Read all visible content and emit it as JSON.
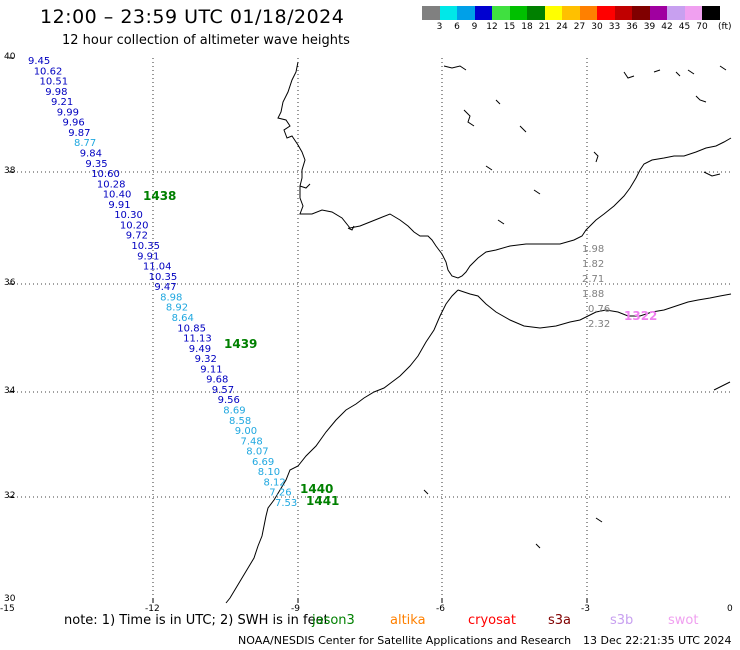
{
  "title": "12:00 – 23:59 UTC 01/18/2024",
  "subtitle": "12 hour collection of altimeter wave heights",
  "legend": {
    "unit": "(ft)",
    "bins": [
      {
        "label": "3",
        "color": "#808080"
      },
      {
        "label": "6",
        "color": "#00e8e8"
      },
      {
        "label": "9",
        "color": "#00a0e8"
      },
      {
        "label": "12",
        "color": "#0000d0"
      },
      {
        "label": "15",
        "color": "#40e040"
      },
      {
        "label": "18",
        "color": "#00c000"
      },
      {
        "label": "21",
        "color": "#008000"
      },
      {
        "label": "24",
        "color": "#ffff00"
      },
      {
        "label": "27",
        "color": "#ffc000"
      },
      {
        "label": "30",
        "color": "#ff8000"
      },
      {
        "label": "33",
        "color": "#ff0000"
      },
      {
        "label": "36",
        "color": "#c00000"
      },
      {
        "label": "39",
        "color": "#800000"
      },
      {
        "label": "42",
        "color": "#a000a0"
      },
      {
        "label": "45",
        "color": "#c8a0f0"
      },
      {
        "label": "70",
        "color": "#f0a0f0"
      },
      {
        "label": "",
        "color": "#000000"
      }
    ]
  },
  "axes": {
    "lat_ticks": [
      "40",
      "38",
      "36",
      "34",
      "32",
      "30"
    ],
    "lon_ticks": [
      "-15",
      "-12",
      "-9",
      "-6",
      "-3",
      "0"
    ]
  },
  "track_a": {
    "color_dark": "#0000c0",
    "color_light": "#20a8e0",
    "values": [
      {
        "v": "9.45",
        "c": "dark"
      },
      {
        "v": "10.62",
        "c": "dark"
      },
      {
        "v": "10.51",
        "c": "dark"
      },
      {
        "v": "9.98",
        "c": "dark"
      },
      {
        "v": "9.21",
        "c": "dark"
      },
      {
        "v": "9.99",
        "c": "dark"
      },
      {
        "v": "9.96",
        "c": "dark"
      },
      {
        "v": "9.87",
        "c": "dark"
      },
      {
        "v": "8.77",
        "c": "light"
      },
      {
        "v": "9.84",
        "c": "dark"
      },
      {
        "v": "9.35",
        "c": "dark"
      },
      {
        "v": "10.60",
        "c": "dark"
      },
      {
        "v": "10.28",
        "c": "dark"
      },
      {
        "v": "10.40",
        "c": "dark"
      },
      {
        "v": "9.91",
        "c": "dark"
      },
      {
        "v": "10.30",
        "c": "dark"
      },
      {
        "v": "10.20",
        "c": "dark"
      },
      {
        "v": "9.72",
        "c": "dark"
      },
      {
        "v": "10.35",
        "c": "dark"
      },
      {
        "v": "9.91",
        "c": "dark"
      },
      {
        "v": "11.04",
        "c": "dark"
      },
      {
        "v": "10.35",
        "c": "dark"
      },
      {
        "v": "9.47",
        "c": "dark"
      },
      {
        "v": "8.98",
        "c": "light"
      },
      {
        "v": "8.92",
        "c": "light"
      },
      {
        "v": "8.64",
        "c": "light"
      },
      {
        "v": "10.85",
        "c": "dark"
      },
      {
        "v": "11.13",
        "c": "dark"
      },
      {
        "v": "9.49",
        "c": "dark"
      },
      {
        "v": "9.32",
        "c": "dark"
      },
      {
        "v": "9.11",
        "c": "dark"
      },
      {
        "v": "9.68",
        "c": "dark"
      },
      {
        "v": "9.57",
        "c": "dark"
      },
      {
        "v": "9.56",
        "c": "dark"
      },
      {
        "v": "8.69",
        "c": "light"
      },
      {
        "v": "8.58",
        "c": "light"
      },
      {
        "v": "9.00",
        "c": "light"
      },
      {
        "v": "7.48",
        "c": "light"
      },
      {
        "v": "8.07",
        "c": "light"
      },
      {
        "v": "6.69",
        "c": "light"
      },
      {
        "v": "8.10",
        "c": "light"
      },
      {
        "v": "8.12",
        "c": "light"
      },
      {
        "v": "7.26",
        "c": "light"
      },
      {
        "v": "7.53",
        "c": "light"
      }
    ]
  },
  "track_b": {
    "color": "#808080",
    "values": [
      "1.98",
      "1.82",
      "2.71",
      "1.88",
      "0.76",
      "2.32"
    ]
  },
  "pass_labels": [
    {
      "text": "1438",
      "color": "#008000"
    },
    {
      "text": "1439",
      "color": "#008000"
    },
    {
      "text": "1440",
      "color": "#008000"
    },
    {
      "text": "1441",
      "color": "#008000"
    },
    {
      "text": "1322",
      "color": "#f080f0"
    }
  ],
  "footer": {
    "note": "note: 1) Time is in UTC; 2) SWH is in feet",
    "missions": [
      {
        "name": "jason3",
        "color": "#008000"
      },
      {
        "name": "altika",
        "color": "#ff8000"
      },
      {
        "name": "cryosat",
        "color": "#ff0000"
      },
      {
        "name": "s3a",
        "color": "#800000"
      },
      {
        "name": "s3b",
        "color": "#c8a0f0"
      },
      {
        "name": "swot",
        "color": "#f0a0f0"
      }
    ],
    "credit": "NOAA/NESDIS Center for Satellite Applications and Research",
    "timestamp": "13 Dec 22:21:35 UTC 2024"
  }
}
